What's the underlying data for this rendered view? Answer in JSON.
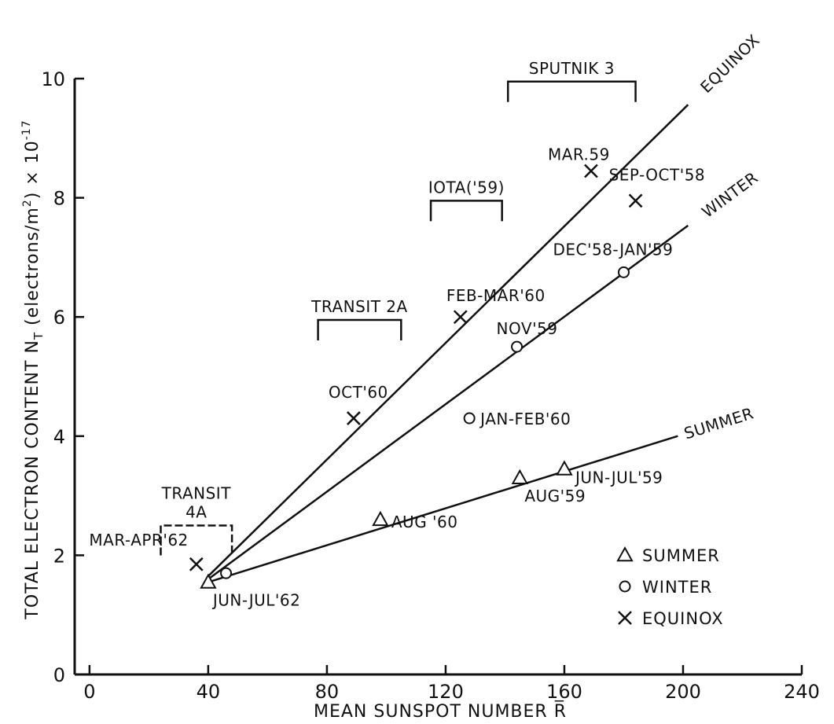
{
  "chart_data": {
    "type": "scatter",
    "xlabel": "MEAN SUNSPOT NUMBER R̅",
    "ylabel": "TOTAL ELECTRON CONTENT N",
    "ylabel_sub": "T",
    "ylabel_units": " (electrons/m",
    "ylabel_units_sup": "2",
    "ylabel_units_close": ") × 10",
    "ylabel_exp": "-17",
    "xlim": [
      -5,
      240
    ],
    "ylim": [
      0,
      10
    ],
    "xticks": [
      0,
      40,
      80,
      120,
      160,
      200,
      240
    ],
    "yticks": [
      0,
      2,
      4,
      6,
      8,
      10
    ],
    "grid": false,
    "legend_position": "bottom-right",
    "series": [
      {
        "name": "SUMMER",
        "marker": "triangle",
        "points": [
          {
            "x": 40,
            "y": 1.55,
            "label": "JUN-JUL'62"
          },
          {
            "x": 98,
            "y": 2.6,
            "label": "AUG '60"
          },
          {
            "x": 145,
            "y": 3.3,
            "label": "AUG'59"
          },
          {
            "x": 160,
            "y": 3.45,
            "label": "JUN-JUL'59"
          }
        ]
      },
      {
        "name": "WINTER",
        "marker": "circle",
        "points": [
          {
            "x": 46,
            "y": 1.7,
            "label": ""
          },
          {
            "x": 128,
            "y": 4.3,
            "label": "JAN-FEB'60"
          },
          {
            "x": 144,
            "y": 5.5,
            "label": "NOV'59"
          },
          {
            "x": 180,
            "y": 6.75,
            "label": "DEC'58-JAN'59"
          }
        ]
      },
      {
        "name": "EQUINOX",
        "marker": "x",
        "points": [
          {
            "x": 36,
            "y": 1.85,
            "label": "MAR-APR'62"
          },
          {
            "x": 89,
            "y": 4.3,
            "label": "OCT'60"
          },
          {
            "x": 125,
            "y": 6.0,
            "label": "FEB-MAR'60"
          },
          {
            "x": 169,
            "y": 8.45,
            "label": "MAR.59"
          },
          {
            "x": 184,
            "y": 7.95,
            "label": "SEP-OCT'58"
          }
        ]
      }
    ],
    "trend_lines": [
      {
        "name": "EQUINOX",
        "from": [
          40,
          1.65
        ],
        "to": [
          228,
          10.85
        ]
      },
      {
        "name": "WINTER",
        "from": [
          40,
          1.6
        ],
        "to": [
          228,
          8.5
        ]
      },
      {
        "name": "SUMMER",
        "from": [
          40,
          1.55
        ],
        "to": [
          224,
          4.4
        ]
      }
    ],
    "satellite_ranges": [
      {
        "name": "SPUTNIK 3",
        "x": [
          141,
          184
        ],
        "y": 9.95
      },
      {
        "name": "IOTA('59)",
        "x": [
          115,
          139
        ],
        "y": 7.95
      },
      {
        "name": "TRANSIT 2A",
        "x": [
          77,
          105
        ],
        "y": 5.95
      },
      {
        "name": "TRANSIT\n4A",
        "x": [
          24,
          48
        ],
        "y": 2.5
      }
    ]
  }
}
